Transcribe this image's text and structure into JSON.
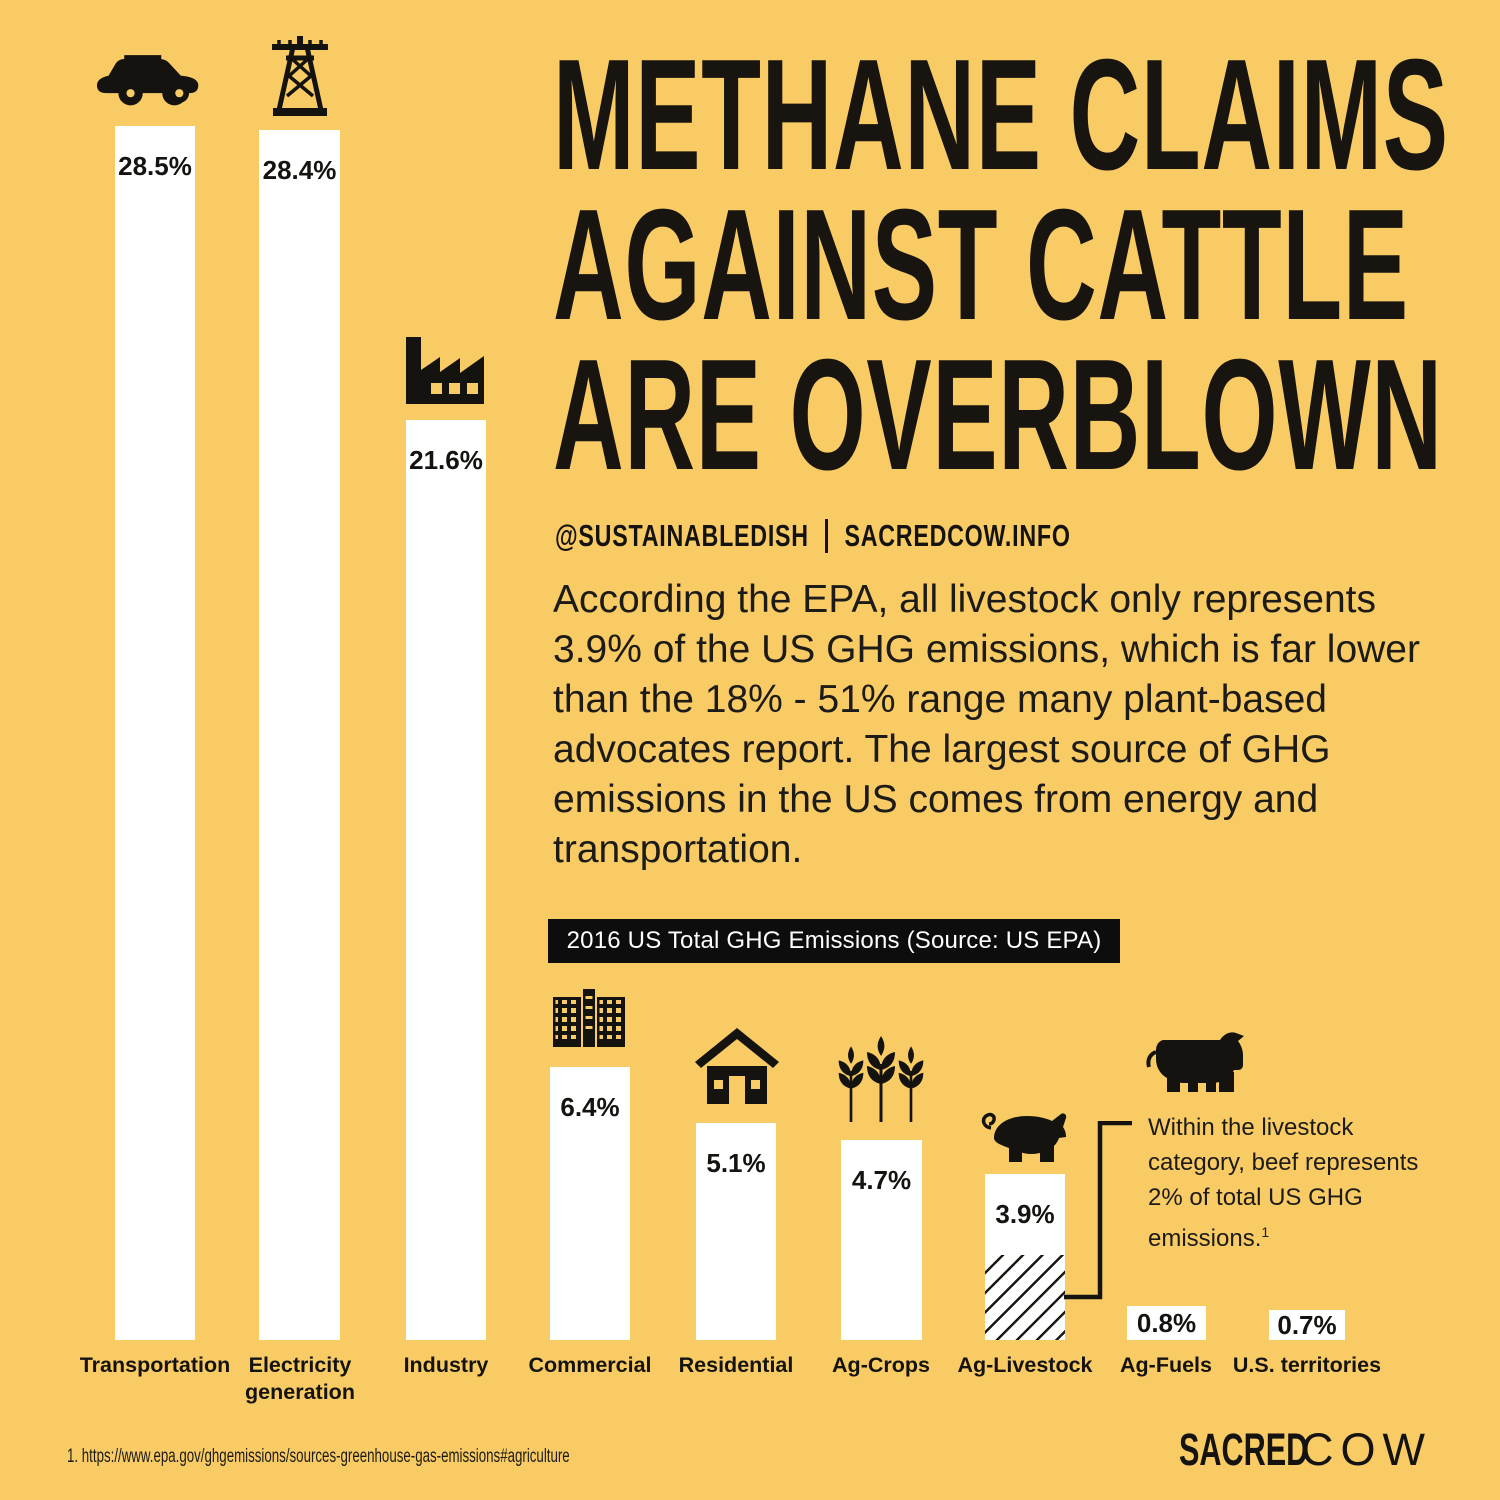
{
  "colors": {
    "background": "#F8CB65",
    "ink": "#15130F",
    "bar": "#FFFFFF",
    "chart_title_box_bg": "#0D0D0D",
    "chart_title_box_text": "#FFFFFF"
  },
  "header": {
    "title_lines": [
      "METHANE CLAIMS",
      "AGAINST CATTLE",
      "ARE OVERBLOWN"
    ],
    "social_handle": "@SUSTAINABLEDISH",
    "website": "SACREDCOW.INFO",
    "intro_paragraph": "According the EPA, all livestock only represents 3.9% of the US GHG emissions, which is far lower than the 18% - 51% range many plant-based advocates report. The largest source of GHG emissions in the US comes from energy and transportation."
  },
  "chart_data": {
    "type": "bar",
    "title": "2016 US Total GHG Emissions (Source: US EPA)",
    "unit": "% of total US GHG emissions",
    "categories": [
      "Transportation",
      "Electricity generation",
      "Industry",
      "Commercial",
      "Residential",
      "Ag-Crops",
      "Ag-Livestock",
      "Ag-Fuels",
      "U.S. territories"
    ],
    "values": [
      28.5,
      28.4,
      21.6,
      6.4,
      5.1,
      4.7,
      3.9,
      0.8,
      0.7
    ],
    "display_values": [
      "28.5%",
      "28.4%",
      "21.6%",
      "6.4%",
      "5.1%",
      "4.7%",
      "3.9%",
      "0.8%",
      "0.7%"
    ],
    "bar_color": "#FFFFFF",
    "ylim": [
      0,
      30
    ],
    "grid": false,
    "legend": false,
    "icons": [
      "suv-car-icon",
      "transmission-tower-icon",
      "factory-icon",
      "office-building-icon",
      "house-icon",
      "wheat-icon",
      "pig-icon",
      null,
      null
    ],
    "highlight": {
      "category": "Ag-Livestock",
      "hatched_value_percent": 2,
      "style": "diagonal-hatch"
    },
    "annotation": {
      "icon": "cow-icon",
      "text": "Within the livestock category, beef represents 2% of total US GHG emissions.",
      "footnote_marker": "1"
    }
  },
  "footer": {
    "footnote": "1. https://www.epa.gov/ghgemissions/sources-greenhouse-gas-emissions#agriculture",
    "logo_bold": "SACRED",
    "logo_light": "COW"
  }
}
